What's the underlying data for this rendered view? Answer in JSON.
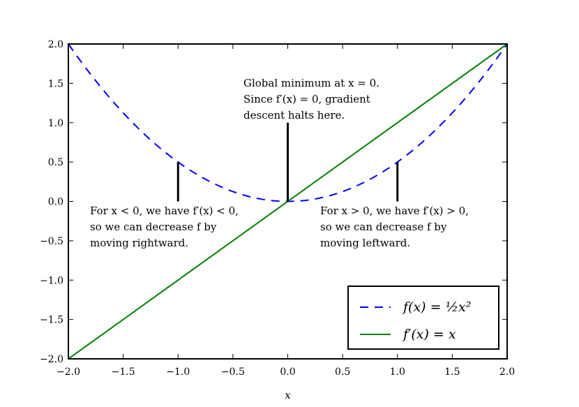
{
  "chart_data": {
    "type": "line",
    "title": "",
    "xlabel": "x",
    "ylabel": "",
    "xlim": [
      -2.0,
      2.0
    ],
    "ylim": [
      -2.0,
      2.0
    ],
    "grid": false,
    "xticks": [
      -2.0,
      -1.5,
      -1.0,
      -0.5,
      0.0,
      0.5,
      1.0,
      1.5,
      2.0
    ],
    "yticks": [
      -2.0,
      -1.5,
      -1.0,
      -0.5,
      0.0,
      0.5,
      1.0,
      1.5,
      2.0
    ],
    "xtick_labels": [
      "−2.0",
      "−1.5",
      "−1.0",
      "−0.5",
      "0.0",
      "0.5",
      "1.0",
      "1.5",
      "2.0"
    ],
    "ytick_labels": [
      "−2.0",
      "−1.5",
      "−1.0",
      "−0.5",
      "0.0",
      "0.5",
      "1.0",
      "1.5",
      "2.0"
    ],
    "legend_placement": "lower-right",
    "series": [
      {
        "name": "f(x) = ½x²",
        "function": "0.5*x^2",
        "style": "dashed",
        "color": "#0000ff"
      },
      {
        "name": "f′(x) = x",
        "function": "x",
        "style": "solid",
        "color": "#008000"
      }
    ],
    "annotations": [
      {
        "lines": [
          "Global minimum at x = 0.",
          "Since f′(x) = 0, gradient",
          "descent halts here."
        ],
        "arrow_to": [
          0,
          0
        ],
        "arrow_from": [
          0,
          1.0
        ]
      },
      {
        "lines": [
          "For x < 0, we have f′(x) < 0,",
          "so we can decrease f by",
          "moving rightward."
        ],
        "arrow_to": [
          -1,
          0.5
        ],
        "arrow_from": [
          -1,
          0
        ]
      },
      {
        "lines": [
          "For x > 0, we have f′(x) > 0,",
          "so we can decrease f by",
          "moving leftward."
        ],
        "arrow_to": [
          1,
          0.5
        ],
        "arrow_from": [
          1,
          0
        ]
      }
    ]
  }
}
